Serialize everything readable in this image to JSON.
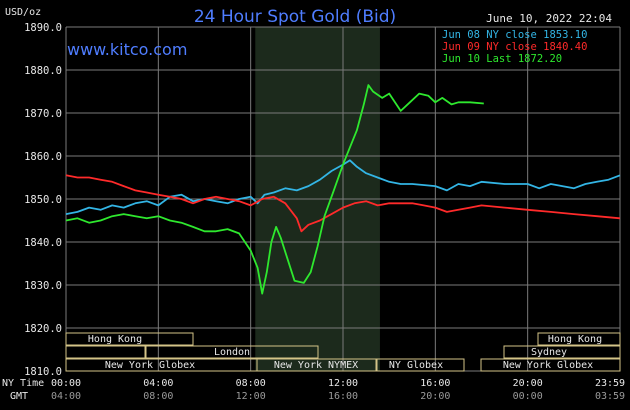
{
  "header": {
    "title": "24 Hour Spot Gold (Bid)",
    "website": "www.kitco.com",
    "timestamp": "June 10, 2022 22:04",
    "y_unit": "USD/oz"
  },
  "legend": [
    {
      "label": "Jun 08 NY close 1853.10",
      "color": "#33b5e5"
    },
    {
      "label": "Jun 09 NY close 1840.40",
      "color": "#ff2a2a"
    },
    {
      "label": "Jun 10 Last 1872.20",
      "color": "#2ee82e"
    }
  ],
  "markets": {
    "row1": [
      "Hong Kong",
      "Hong Kong"
    ],
    "row2": [
      "London",
      "Sydney"
    ],
    "row3": [
      "New York Globex",
      "New York NYMEX",
      "NY Globex",
      "New York Globex"
    ]
  },
  "x_axis": {
    "ny_label": "NY Time",
    "gmt_label": "GMT",
    "ny_ticks": [
      "00:00",
      "04:00",
      "08:00",
      "12:00",
      "16:00",
      "20:00",
      "23:59"
    ],
    "gmt_ticks": [
      "04:00",
      "08:00",
      "12:00",
      "16:00",
      "20:00",
      "00:00",
      "03:59"
    ]
  },
  "colors": {
    "background": "#000000",
    "grid": "#7a7a7a",
    "highlight": "#1c2a1c",
    "text": "#e8e8e8",
    "title": "#4f7dff",
    "market_box": "#d4c488",
    "series_jun08": "#33b5e5",
    "series_jun09": "#ff2a2a",
    "series_jun10": "#2ee82e"
  },
  "chart_data": {
    "type": "line",
    "title": "24 Hour Spot Gold (Bid)",
    "ylabel": "USD/oz",
    "xlim": [
      0,
      24
    ],
    "ylim": [
      1810,
      1890
    ],
    "yticks": [
      1810.0,
      1820.0,
      1830.0,
      1840.0,
      1850.0,
      1860.0,
      1870.0,
      1880.0,
      1890.0
    ],
    "highlight_range": [
      8.2,
      13.6
    ],
    "grid": true,
    "legend_position": "top-right",
    "series": [
      {
        "name": "Jun 08 NY close 1853.10",
        "color": "#33b5e5",
        "points": [
          [
            0,
            1846.5
          ],
          [
            0.5,
            1847.0
          ],
          [
            1,
            1848.0
          ],
          [
            1.5,
            1847.5
          ],
          [
            2,
            1848.5
          ],
          [
            2.5,
            1848.0
          ],
          [
            3,
            1849.0
          ],
          [
            3.5,
            1849.5
          ],
          [
            4,
            1848.5
          ],
          [
            4.5,
            1850.5
          ],
          [
            5,
            1851.0
          ],
          [
            5.5,
            1849.5
          ],
          [
            6,
            1850.0
          ],
          [
            6.5,
            1849.5
          ],
          [
            7,
            1849.0
          ],
          [
            7.5,
            1850.0
          ],
          [
            8,
            1850.5
          ],
          [
            8.3,
            1849.0
          ],
          [
            8.6,
            1851.0
          ],
          [
            9,
            1851.5
          ],
          [
            9.5,
            1852.5
          ],
          [
            10,
            1852.0
          ],
          [
            10.5,
            1853.0
          ],
          [
            11,
            1854.5
          ],
          [
            11.5,
            1856.5
          ],
          [
            12,
            1858.0
          ],
          [
            12.3,
            1859.0
          ],
          [
            12.6,
            1857.5
          ],
          [
            13,
            1856.0
          ],
          [
            13.5,
            1855.0
          ],
          [
            14,
            1854.0
          ],
          [
            14.5,
            1853.5
          ],
          [
            15,
            1853.5
          ],
          [
            16,
            1853.0
          ],
          [
            16.5,
            1852.0
          ],
          [
            17,
            1853.5
          ],
          [
            17.5,
            1853.0
          ],
          [
            18,
            1854.0
          ],
          [
            19,
            1853.5
          ],
          [
            20,
            1853.5
          ],
          [
            20.5,
            1852.5
          ],
          [
            21,
            1853.5
          ],
          [
            21.5,
            1853.0
          ],
          [
            22,
            1852.5
          ],
          [
            22.5,
            1853.5
          ],
          [
            23,
            1854.0
          ],
          [
            23.5,
            1854.5
          ],
          [
            24,
            1855.5
          ]
        ]
      },
      {
        "name": "Jun 09 NY close 1840.40",
        "color": "#ff2a2a",
        "points": [
          [
            0,
            1855.5
          ],
          [
            0.5,
            1855.0
          ],
          [
            1,
            1855.0
          ],
          [
            1.5,
            1854.5
          ],
          [
            2,
            1854.0
          ],
          [
            2.5,
            1853.0
          ],
          [
            3,
            1852.0
          ],
          [
            3.5,
            1851.5
          ],
          [
            4,
            1851.0
          ],
          [
            4.5,
            1850.5
          ],
          [
            5,
            1850.0
          ],
          [
            5.5,
            1849.0
          ],
          [
            6,
            1850.0
          ],
          [
            6.5,
            1850.5
          ],
          [
            7,
            1850.0
          ],
          [
            7.5,
            1849.5
          ],
          [
            8,
            1848.5
          ],
          [
            8.5,
            1850.0
          ],
          [
            9,
            1850.5
          ],
          [
            9.5,
            1849.0
          ],
          [
            10,
            1845.5
          ],
          [
            10.2,
            1842.5
          ],
          [
            10.5,
            1844.0
          ],
          [
            11,
            1845.0
          ],
          [
            11.5,
            1846.5
          ],
          [
            12,
            1848.0
          ],
          [
            12.5,
            1849.0
          ],
          [
            13,
            1849.5
          ],
          [
            13.5,
            1848.5
          ],
          [
            14,
            1849.0
          ],
          [
            15,
            1849.0
          ],
          [
            15.5,
            1848.5
          ],
          [
            16,
            1848.0
          ],
          [
            16.5,
            1847.0
          ],
          [
            17,
            1847.5
          ],
          [
            17.5,
            1848.0
          ],
          [
            18,
            1848.5
          ],
          [
            19,
            1848.0
          ],
          [
            20,
            1847.5
          ],
          [
            21,
            1847.0
          ],
          [
            22,
            1846.5
          ],
          [
            23,
            1846.0
          ],
          [
            24,
            1845.5
          ]
        ]
      },
      {
        "name": "Jun 10 Last 1872.20",
        "color": "#2ee82e",
        "points": [
          [
            0,
            1845.0
          ],
          [
            0.5,
            1845.5
          ],
          [
            1,
            1844.5
          ],
          [
            1.5,
            1845.0
          ],
          [
            2,
            1846.0
          ],
          [
            2.5,
            1846.5
          ],
          [
            3,
            1846.0
          ],
          [
            3.5,
            1845.5
          ],
          [
            4,
            1846.0
          ],
          [
            4.5,
            1845.0
          ],
          [
            5,
            1844.5
          ],
          [
            5.5,
            1843.5
          ],
          [
            6,
            1842.5
          ],
          [
            6.5,
            1842.5
          ],
          [
            7,
            1843.0
          ],
          [
            7.5,
            1842.0
          ],
          [
            8,
            1838.0
          ],
          [
            8.3,
            1834.0
          ],
          [
            8.5,
            1828.0
          ],
          [
            8.7,
            1833.0
          ],
          [
            8.9,
            1840.0
          ],
          [
            9.1,
            1843.5
          ],
          [
            9.3,
            1841.0
          ],
          [
            9.6,
            1836.0
          ],
          [
            9.9,
            1831.0
          ],
          [
            10.3,
            1830.5
          ],
          [
            10.6,
            1833.0
          ],
          [
            10.9,
            1839.0
          ],
          [
            11.2,
            1846.0
          ],
          [
            11.6,
            1852.0
          ],
          [
            12,
            1858.0
          ],
          [
            12.3,
            1862.0
          ],
          [
            12.6,
            1866.0
          ],
          [
            12.9,
            1872.0
          ],
          [
            13.1,
            1876.5
          ],
          [
            13.3,
            1875.0
          ],
          [
            13.7,
            1873.5
          ],
          [
            14,
            1874.5
          ],
          [
            14.5,
            1870.5
          ],
          [
            14.9,
            1872.5
          ],
          [
            15.3,
            1874.5
          ],
          [
            15.7,
            1874.0
          ],
          [
            16,
            1872.5
          ],
          [
            16.3,
            1873.5
          ],
          [
            16.7,
            1872.0
          ],
          [
            17,
            1872.5
          ],
          [
            17.5,
            1872.5
          ],
          [
            18.1,
            1872.2
          ]
        ]
      }
    ]
  }
}
